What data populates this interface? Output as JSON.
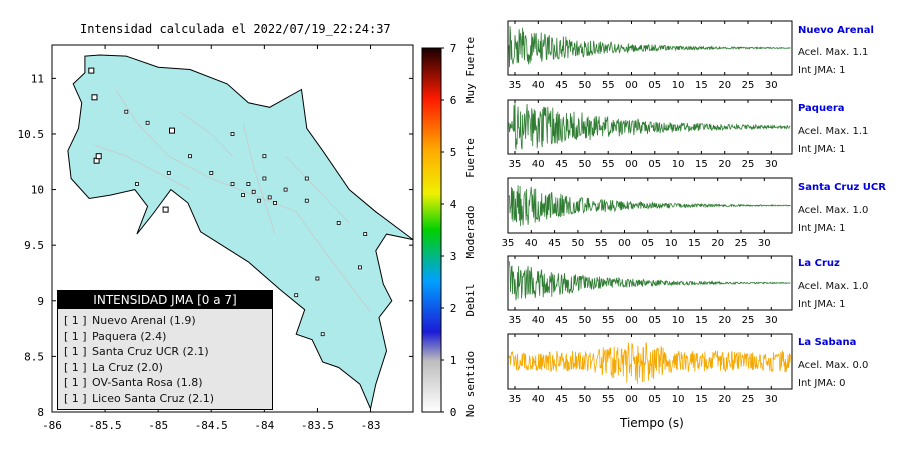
{
  "map": {
    "title": "Intensidad calculada el 2022/07/19_22:24:37",
    "x_ticks": [
      "-86",
      "-85.5",
      "-85",
      "-84.5",
      "-84",
      "-83.5",
      "-83"
    ],
    "y_ticks": [
      "11",
      "10.5",
      "10",
      "9.5",
      "9",
      "8.5",
      "8"
    ]
  },
  "legend": {
    "header": "INTENSIDAD JMA [0 a 7]",
    "items": [
      {
        "tag": "[ 1 ]",
        "text": "Nuevo Arenal (1.9)"
      },
      {
        "tag": "[ 1 ]",
        "text": "Paquera (2.4)"
      },
      {
        "tag": "[ 1 ]",
        "text": "Santa Cruz UCR (2.1)"
      },
      {
        "tag": "[ 1 ]",
        "text": "La Cruz (2.0)"
      },
      {
        "tag": "[ 1 ]",
        "text": "OV-Santa Rosa (1.8)"
      },
      {
        "tag": "[ 1 ]",
        "text": "Liceo Santa Cruz (2.1)"
      }
    ]
  },
  "colorbar": {
    "ticks": [
      "0",
      "1",
      "2",
      "3",
      "4",
      "5",
      "6",
      "7"
    ],
    "categories": [
      "No sentido",
      "Debil",
      "Moderado",
      "Fuerte",
      "Muy Fuerte"
    ]
  },
  "traces": [
    {
      "name": "Nuevo Arenal",
      "accel": "Acel. Max. 1.1",
      "intensity": "Int JMA: 1",
      "color": "#2e7d32",
      "ticks": [
        "35",
        "40",
        "45",
        "50",
        "55",
        "00",
        "05",
        "10",
        "15",
        "20",
        "25",
        "30"
      ]
    },
    {
      "name": "Paquera",
      "accel": "Acel. Max. 1.1",
      "intensity": "Int JMA: 1",
      "color": "#2e7d32",
      "ticks": [
        "35",
        "40",
        "45",
        "50",
        "55",
        "00",
        "05",
        "10",
        "15",
        "20",
        "25",
        "30"
      ]
    },
    {
      "name": "Santa Cruz UCR",
      "accel": "Acel. Max. 1.0",
      "intensity": "Int JMA: 1",
      "color": "#2e7d32",
      "ticks": [
        "35",
        "40",
        "45",
        "50",
        "55",
        "00",
        "05",
        "10",
        "15",
        "20",
        "25",
        "30"
      ]
    },
    {
      "name": "La Cruz",
      "accel": "Acel. Max. 1.0",
      "intensity": "Int JMA: 1",
      "color": "#2e7d32",
      "ticks": [
        "35",
        "40",
        "45",
        "50",
        "55",
        "00",
        "05",
        "10",
        "15",
        "20",
        "25",
        "30"
      ]
    },
    {
      "name": "La Sabana",
      "accel": "Acel. Max. 0.0",
      "intensity": "Int JMA: 0",
      "color": "#f5a800",
      "ticks": [
        "35",
        "40",
        "45",
        "50",
        "55",
        "00",
        "05",
        "10",
        "15",
        "20",
        "25",
        "30"
      ]
    }
  ],
  "time_axis_label": "Tiempo (s)",
  "chart_data": [
    {
      "type": "scatter",
      "title": "Intensidad calculada el 2022/07/19_22:24:37",
      "xlim": [
        -86,
        -82.6
      ],
      "ylim": [
        8,
        11.3
      ],
      "x_ticks": [
        -86,
        -85.5,
        -85,
        -84.5,
        -84,
        -83.5,
        -83
      ],
      "y_ticks": [
        8,
        8.5,
        9,
        9.5,
        10,
        10.5,
        11
      ],
      "series": [
        {
          "name": "[ 1 ] Nuevo Arenal (1.9)",
          "x": [
            -84.87
          ],
          "y": [
            10.53
          ]
        },
        {
          "name": "[ 1 ] Paquera (2.4)",
          "x": [
            -84.93
          ],
          "y": [
            9.82
          ]
        },
        {
          "name": "[ 1 ] Santa Cruz UCR (2.1)",
          "x": [
            -85.58
          ],
          "y": [
            10.26
          ]
        },
        {
          "name": "[ 1 ] La Cruz (2.0)",
          "x": [
            -85.63
          ],
          "y": [
            11.07
          ]
        },
        {
          "name": "[ 1 ] OV-Santa Rosa (1.8)",
          "x": [
            -85.6
          ],
          "y": [
            10.83
          ]
        },
        {
          "name": "[ 1 ] Liceo Santa Cruz (2.1)",
          "x": [
            -85.56
          ],
          "y": [
            10.3
          ]
        }
      ]
    },
    {
      "type": "line",
      "title": "",
      "x_ticks": [
        "35",
        "40",
        "45",
        "50",
        "55",
        "00",
        "05",
        "10",
        "15",
        "20",
        "25",
        "30"
      ],
      "xlabel": "Tiempo (s)",
      "series": [
        {
          "name": "Nuevo Arenal",
          "peak_accel": 1.1,
          "jma": 1
        },
        {
          "name": "Paquera",
          "peak_accel": 1.1,
          "jma": 1
        },
        {
          "name": "Santa Cruz UCR",
          "peak_accel": 1.0,
          "jma": 1
        },
        {
          "name": "La Cruz",
          "peak_accel": 1.0,
          "jma": 1
        },
        {
          "name": "La Sabana",
          "peak_accel": 0.0,
          "jma": 0
        }
      ]
    }
  ]
}
